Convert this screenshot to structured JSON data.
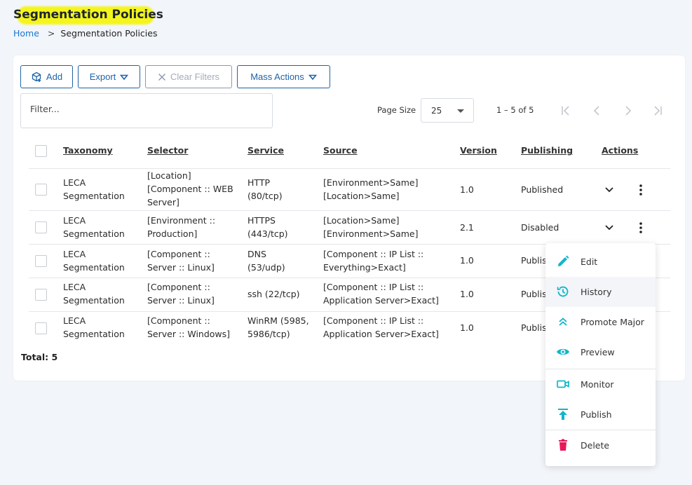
{
  "page": {
    "title": "Segmentation Policies"
  },
  "breadcrumb": {
    "home": "Home",
    "separator": ">",
    "current": "Segmentation Policies"
  },
  "toolbar": {
    "add": "Add",
    "export": "Export",
    "clear_filters": "Clear Filters",
    "mass_actions": "Mass Actions"
  },
  "filter": {
    "placeholder": "Filter..."
  },
  "pagination": {
    "page_size_label": "Page Size",
    "page_size": "25",
    "range": "1 – 5 of 5"
  },
  "table": {
    "headers": [
      "Taxonomy",
      "Selector",
      "Service",
      "Source",
      "Version",
      "Publishing",
      "Actions"
    ],
    "rows": [
      {
        "taxonomy": [
          "LECA",
          "Segmentation"
        ],
        "selector": [
          "[Location]",
          "[Component :: WEB",
          "Server]"
        ],
        "service": [
          "HTTP",
          "(80/tcp)"
        ],
        "source": [
          "[Environment>Same]",
          "[Location>Same]"
        ],
        "version": "1.0",
        "publishing": "Published"
      },
      {
        "taxonomy": [
          "LECA",
          "Segmentation"
        ],
        "selector": [
          "[Environment ::",
          "Production]"
        ],
        "service": [
          "HTTPS",
          "(443/tcp)"
        ],
        "source": [
          "[Location>Same]",
          "[Environment>Same]"
        ],
        "version": "2.1",
        "publishing": "Disabled"
      },
      {
        "taxonomy": [
          "LECA",
          "Segmentation"
        ],
        "selector": [
          "[Component ::",
          "Server :: Linux]"
        ],
        "service": [
          "DNS",
          "(53/udp)"
        ],
        "source": [
          "[Component :: IP List ::",
          "Everything>Exact]"
        ],
        "version": "1.0",
        "publishing": "Publis"
      },
      {
        "taxonomy": [
          "LECA",
          "Segmentation"
        ],
        "selector": [
          "[Component ::",
          "Server :: Linux]"
        ],
        "service": [
          "ssh (22/tcp)"
        ],
        "source": [
          "[Component :: IP List ::",
          "Application Server>Exact]"
        ],
        "version": "1.0",
        "publishing": "Publis"
      },
      {
        "taxonomy": [
          "LECA",
          "Segmentation"
        ],
        "selector": [
          "[Component ::",
          "Server :: Windows]"
        ],
        "service": [
          "WinRM (5985,",
          "5986/tcp)"
        ],
        "source": [
          "[Component :: IP List ::",
          "Application Server>Exact]"
        ],
        "version": "1.0",
        "publishing": "Publis"
      }
    ],
    "total": "Total: 5"
  },
  "context_menu": {
    "items": [
      {
        "label": "Edit",
        "icon": "pencil-icon"
      },
      {
        "label": "History",
        "icon": "history-icon"
      },
      {
        "label": "Promote Major",
        "icon": "double-chevron-up-icon"
      },
      {
        "label": "Preview",
        "icon": "eye-icon"
      },
      {
        "label": "Monitor",
        "icon": "video-camera-icon"
      },
      {
        "label": "Publish",
        "icon": "publish-arrow-icon"
      },
      {
        "label": "Delete",
        "icon": "trash-icon"
      }
    ]
  },
  "colors": {
    "accent": "#1e63a8",
    "link": "#1976d2",
    "teal_icon": "#0fb6c9",
    "delete_icon": "#e8185a",
    "highlight": "#f4f50a"
  }
}
